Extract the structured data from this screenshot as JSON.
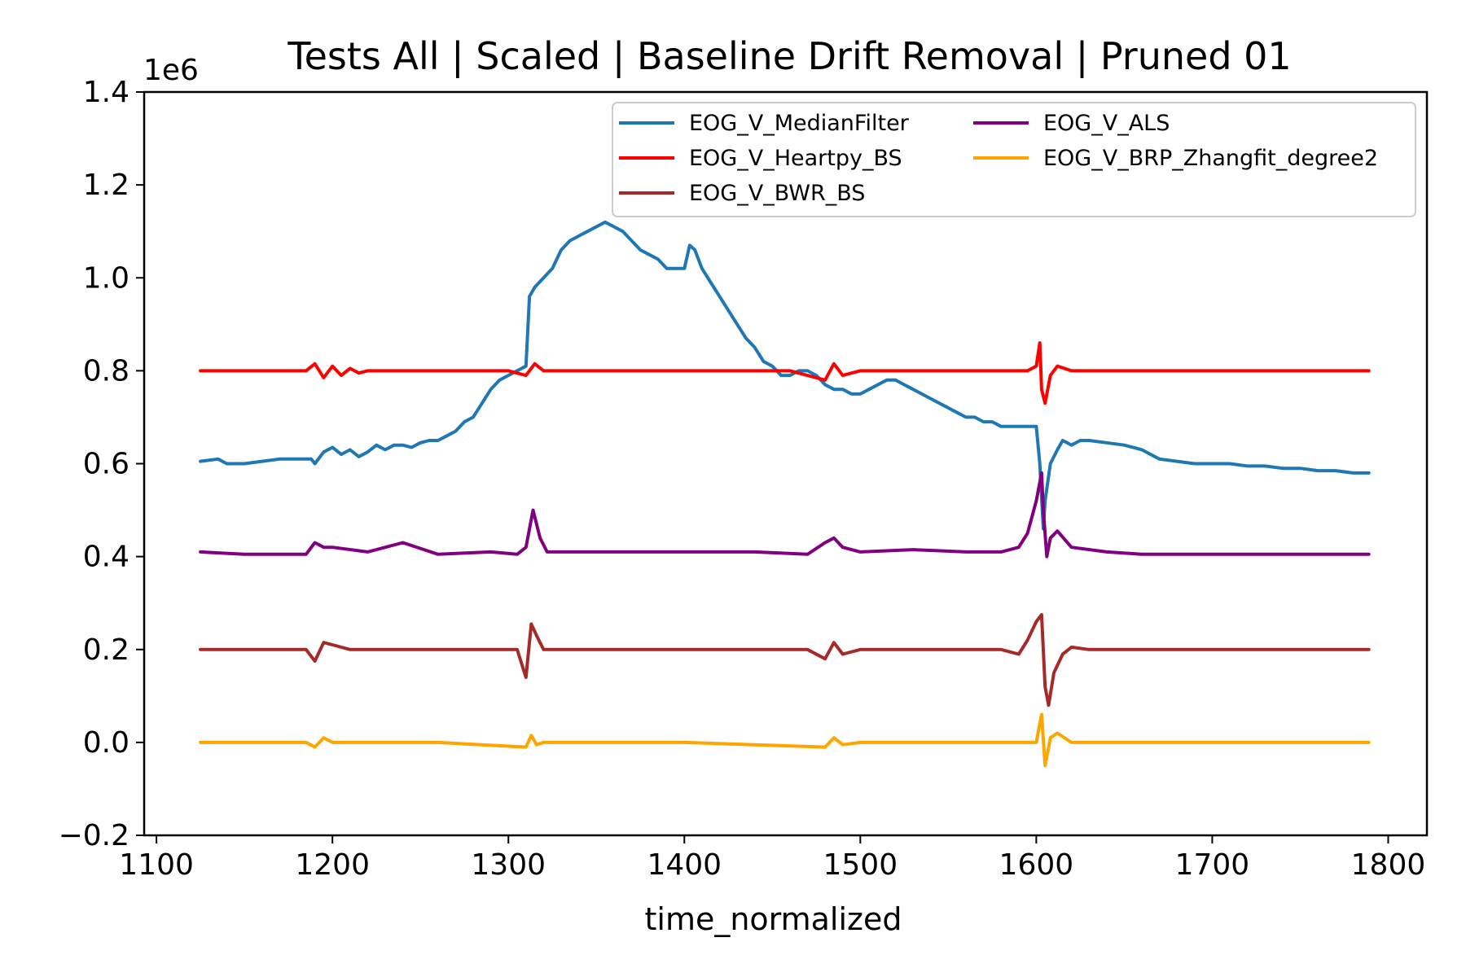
{
  "chart_data": {
    "type": "line",
    "title": "Tests All | Scaled | Baseline Drift Removal | Pruned 01",
    "xlabel": "time_normalized",
    "ylabel": "",
    "y_multiplier_label": "1e6",
    "xlim": [
      1093,
      1822
    ],
    "ylim": [
      -0.2,
      1.4
    ],
    "x_ticks": [
      1100,
      1200,
      1300,
      1400,
      1500,
      1600,
      1700,
      1800
    ],
    "x_tick_labels": [
      "1100",
      "1200",
      "1300",
      "1400",
      "1500",
      "1600",
      "1700",
      "1800"
    ],
    "y_ticks": [
      -0.2,
      0.0,
      0.2,
      0.4,
      0.6,
      0.8,
      1.0,
      1.2,
      1.4
    ],
    "y_tick_labels": [
      "−0.2",
      "0.0",
      "0.2",
      "0.4",
      "0.6",
      "0.8",
      "1.0",
      "1.2",
      "1.4"
    ],
    "grid": false,
    "legend": {
      "position": "top-right",
      "columns": 2
    },
    "series": [
      {
        "name": "EOG_V_MedianFilter",
        "color": "#1f77b4",
        "x": [
          1125,
          1135,
          1140,
          1150,
          1160,
          1170,
          1180,
          1188,
          1190,
          1195,
          1200,
          1205,
          1210,
          1215,
          1220,
          1225,
          1230,
          1235,
          1240,
          1245,
          1250,
          1255,
          1260,
          1265,
          1270,
          1275,
          1280,
          1285,
          1290,
          1295,
          1300,
          1305,
          1310,
          1312,
          1315,
          1320,
          1325,
          1330,
          1335,
          1340,
          1345,
          1350,
          1355,
          1360,
          1365,
          1370,
          1375,
          1380,
          1385,
          1390,
          1395,
          1400,
          1403,
          1406,
          1410,
          1415,
          1420,
          1425,
          1430,
          1435,
          1440,
          1445,
          1450,
          1455,
          1460,
          1465,
          1470,
          1475,
          1480,
          1485,
          1490,
          1495,
          1500,
          1505,
          1510,
          1515,
          1520,
          1525,
          1530,
          1535,
          1540,
          1545,
          1550,
          1555,
          1560,
          1565,
          1570,
          1575,
          1580,
          1585,
          1590,
          1595,
          1600,
          1602,
          1604,
          1605,
          1608,
          1612,
          1615,
          1620,
          1625,
          1630,
          1640,
          1650,
          1660,
          1665,
          1670,
          1680,
          1690,
          1700,
          1710,
          1720,
          1730,
          1740,
          1750,
          1760,
          1770,
          1780,
          1789
        ],
        "y": [
          0.605,
          0.61,
          0.6,
          0.6,
          0.605,
          0.61,
          0.61,
          0.61,
          0.6,
          0.625,
          0.635,
          0.62,
          0.63,
          0.615,
          0.625,
          0.64,
          0.63,
          0.64,
          0.64,
          0.635,
          0.645,
          0.65,
          0.65,
          0.66,
          0.67,
          0.69,
          0.7,
          0.73,
          0.76,
          0.78,
          0.79,
          0.8,
          0.81,
          0.96,
          0.98,
          1.0,
          1.02,
          1.06,
          1.08,
          1.09,
          1.1,
          1.11,
          1.12,
          1.11,
          1.1,
          1.08,
          1.06,
          1.05,
          1.04,
          1.02,
          1.02,
          1.02,
          1.07,
          1.06,
          1.02,
          0.99,
          0.96,
          0.93,
          0.9,
          0.87,
          0.85,
          0.82,
          0.81,
          0.79,
          0.79,
          0.8,
          0.8,
          0.79,
          0.77,
          0.76,
          0.76,
          0.75,
          0.75,
          0.76,
          0.77,
          0.78,
          0.78,
          0.77,
          0.76,
          0.75,
          0.74,
          0.73,
          0.72,
          0.71,
          0.7,
          0.7,
          0.69,
          0.69,
          0.68,
          0.68,
          0.68,
          0.68,
          0.68,
          0.6,
          0.46,
          0.52,
          0.6,
          0.63,
          0.65,
          0.64,
          0.65,
          0.65,
          0.645,
          0.64,
          0.63,
          0.62,
          0.61,
          0.605,
          0.6,
          0.6,
          0.6,
          0.595,
          0.595,
          0.59,
          0.59,
          0.585,
          0.585,
          0.58,
          0.58
        ]
      },
      {
        "name": "EOG_V_Heartpy_BS",
        "color": "#ff0000",
        "x": [
          1125,
          1140,
          1160,
          1185,
          1190,
          1195,
          1200,
          1205,
          1210,
          1215,
          1220,
          1240,
          1260,
          1280,
          1300,
          1310,
          1315,
          1320,
          1340,
          1360,
          1380,
          1400,
          1420,
          1440,
          1460,
          1480,
          1485,
          1490,
          1500,
          1520,
          1540,
          1560,
          1580,
          1595,
          1600,
          1602,
          1603,
          1605,
          1608,
          1612,
          1620,
          1640,
          1660,
          1680,
          1700,
          1720,
          1740,
          1760,
          1789
        ],
        "y": [
          0.8,
          0.8,
          0.8,
          0.8,
          0.815,
          0.785,
          0.81,
          0.79,
          0.805,
          0.795,
          0.8,
          0.8,
          0.8,
          0.8,
          0.8,
          0.79,
          0.815,
          0.8,
          0.8,
          0.8,
          0.8,
          0.8,
          0.8,
          0.8,
          0.8,
          0.78,
          0.815,
          0.79,
          0.8,
          0.8,
          0.8,
          0.8,
          0.8,
          0.8,
          0.81,
          0.86,
          0.76,
          0.73,
          0.79,
          0.81,
          0.8,
          0.8,
          0.8,
          0.8,
          0.8,
          0.8,
          0.8,
          0.8,
          0.8
        ]
      },
      {
        "name": "EOG_V_BWR_BS",
        "color": "#a52a2a",
        "x": [
          1125,
          1150,
          1185,
          1190,
          1195,
          1200,
          1210,
          1230,
          1260,
          1290,
          1305,
          1310,
          1313,
          1316,
          1320,
          1330,
          1360,
          1400,
          1440,
          1470,
          1480,
          1485,
          1490,
          1500,
          1530,
          1560,
          1580,
          1590,
          1595,
          1600,
          1603,
          1605,
          1607,
          1610,
          1615,
          1620,
          1630,
          1660,
          1700,
          1740,
          1789
        ],
        "y": [
          0.2,
          0.2,
          0.2,
          0.175,
          0.215,
          0.21,
          0.2,
          0.2,
          0.2,
          0.2,
          0.2,
          0.14,
          0.255,
          0.23,
          0.2,
          0.2,
          0.2,
          0.2,
          0.2,
          0.2,
          0.18,
          0.215,
          0.19,
          0.2,
          0.2,
          0.2,
          0.2,
          0.19,
          0.22,
          0.26,
          0.275,
          0.12,
          0.08,
          0.15,
          0.19,
          0.205,
          0.2,
          0.2,
          0.2,
          0.2,
          0.2
        ]
      },
      {
        "name": "EOG_V_ALS",
        "color": "#800080",
        "x": [
          1125,
          1150,
          1185,
          1190,
          1195,
          1200,
          1220,
          1240,
          1260,
          1290,
          1305,
          1310,
          1314,
          1318,
          1322,
          1330,
          1360,
          1400,
          1440,
          1470,
          1480,
          1485,
          1490,
          1500,
          1530,
          1560,
          1580,
          1590,
          1595,
          1600,
          1603,
          1604,
          1606,
          1608,
          1612,
          1620,
          1640,
          1660,
          1700,
          1740,
          1789
        ],
        "y": [
          0.41,
          0.405,
          0.405,
          0.43,
          0.42,
          0.42,
          0.41,
          0.43,
          0.405,
          0.41,
          0.405,
          0.42,
          0.5,
          0.44,
          0.41,
          0.41,
          0.41,
          0.41,
          0.41,
          0.405,
          0.43,
          0.44,
          0.42,
          0.41,
          0.415,
          0.41,
          0.41,
          0.42,
          0.45,
          0.52,
          0.58,
          0.5,
          0.4,
          0.44,
          0.455,
          0.42,
          0.41,
          0.405,
          0.405,
          0.405,
          0.405
        ]
      },
      {
        "name": "EOG_V_BRP_Zhangfit_degree2",
        "color": "#ffa500",
        "x": [
          1125,
          1185,
          1190,
          1195,
          1200,
          1260,
          1310,
          1313,
          1316,
          1320,
          1400,
          1480,
          1485,
          1490,
          1500,
          1600,
          1602,
          1603,
          1605,
          1608,
          1612,
          1620,
          1700,
          1789
        ],
        "y": [
          0.0,
          0.0,
          -0.01,
          0.01,
          0.0,
          0.0,
          -0.01,
          0.015,
          -0.005,
          0.0,
          0.0,
          -0.01,
          0.01,
          -0.005,
          0.0,
          0.0,
          0.04,
          0.06,
          -0.05,
          0.01,
          0.02,
          0.0,
          0.0,
          0.0
        ]
      }
    ]
  }
}
